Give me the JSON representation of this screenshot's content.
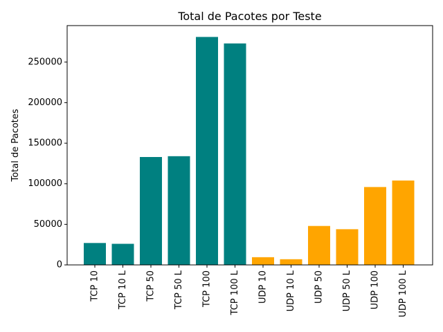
{
  "chart_data": {
    "type": "bar",
    "title": "Total de Pacotes por Teste",
    "xlabel": "",
    "ylabel": "Total de Pacotes",
    "categories": [
      "TCP 10",
      "TCP 10 L",
      "TCP 50",
      "TCP 50 L",
      "TCP 100",
      "TCP 100 L",
      "UDP 10",
      "UDP 10 L",
      "UDP 50",
      "UDP 50 L",
      "UDP 100",
      "UDP 100 L"
    ],
    "values": [
      27000,
      26000,
      133000,
      134000,
      281000,
      273000,
      9500,
      7000,
      48000,
      44000,
      96000,
      104000
    ],
    "bar_colors": [
      "#008080",
      "#008080",
      "#008080",
      "#008080",
      "#008080",
      "#008080",
      "#FFA500",
      "#FFA500",
      "#FFA500",
      "#FFA500",
      "#FFA500",
      "#FFA500"
    ],
    "ylim": [
      0,
      295000
    ],
    "yticks": [
      0,
      50000,
      100000,
      150000,
      200000,
      250000
    ],
    "ytick_labels": [
      "0",
      "50000",
      "100000",
      "150000",
      "200000",
      "250000"
    ],
    "grid": false
  }
}
